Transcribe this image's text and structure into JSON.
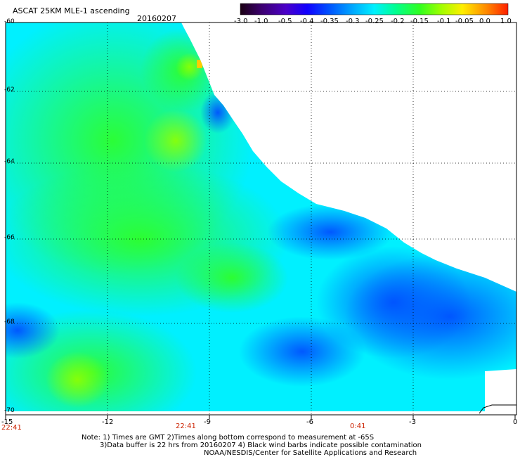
{
  "header": {
    "title": "ASCAT 25KM MLE-1 ascending",
    "date": "20160207"
  },
  "colorbar": {
    "labels": [
      "-3.0",
      "-1.0",
      "-0.5",
      "-0.4",
      "-0.35",
      "-0.3",
      "-0.25",
      "-0.2",
      "-0.15",
      "-0.1",
      "-0.05",
      "0.0",
      "1.0"
    ],
    "colors": [
      "#240020",
      "#4b00a0",
      "#2200d8",
      "#0034ff",
      "#0072ff",
      "#00b4ff",
      "#00f0ff",
      "#00ffa0",
      "#30ff20",
      "#a0ff00",
      "#ffee00",
      "#ff8800",
      "#ff2200"
    ]
  },
  "axes": {
    "x_ticks": [
      "-15",
      "-12",
      "-9",
      "-6",
      "-3",
      "0"
    ],
    "y_ticks": [
      "-60",
      "-62",
      "-64",
      "-66",
      "-68",
      "-70"
    ],
    "times": [
      "22:41",
      "22:41",
      "0:41"
    ]
  },
  "notes": {
    "line1": "Note: 1) Times are GMT 2)Times along bottom correspond to measurement at -65S",
    "line2": "3)Data buffer is 22 hrs from 20160207 4) Black wind barbs indicate possible contamination",
    "line3": "NOAA/NESDIS/Center for Satellite Applications and Research"
  }
}
